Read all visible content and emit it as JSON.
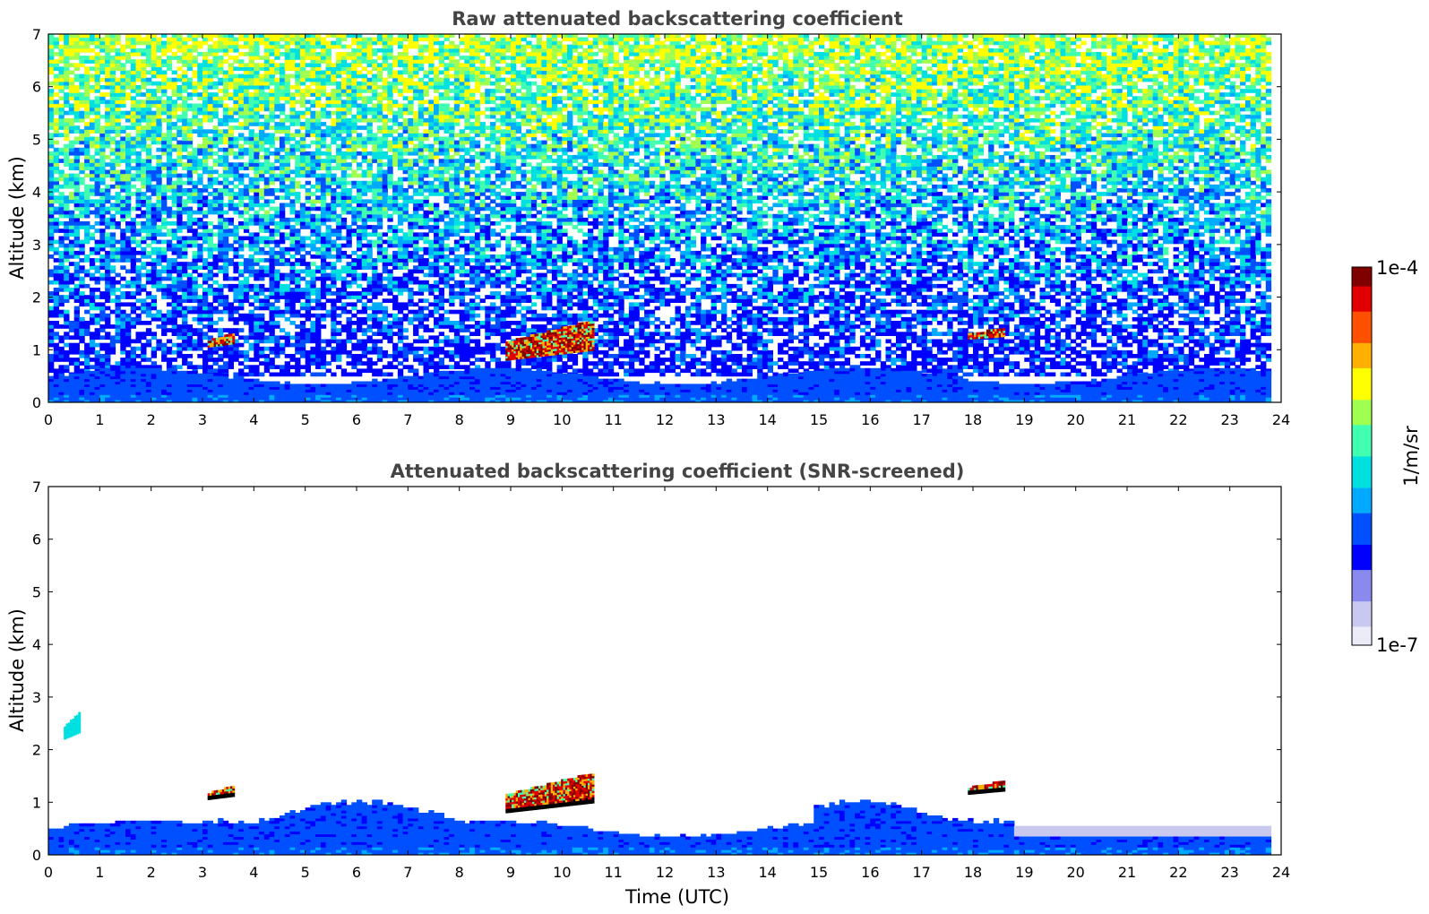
{
  "chart_data": [
    {
      "type": "heatmap",
      "title": "Raw attenuated backscattering coefficient",
      "xlabel": "",
      "ylabel": "Altitude (km)",
      "xlim": [
        0,
        24
      ],
      "ylim": [
        0,
        7
      ],
      "x_ticks": [
        "0",
        "1",
        "2",
        "3",
        "4",
        "5",
        "6",
        "7",
        "8",
        "9",
        "10",
        "11",
        "12",
        "13",
        "14",
        "15",
        "16",
        "17",
        "18",
        "19",
        "20",
        "21",
        "22",
        "23",
        "24"
      ],
      "y_ticks": [
        "0",
        "1",
        "2",
        "3",
        "4",
        "5",
        "6",
        "7"
      ],
      "data_end_time": 23.8,
      "background": "noisy, increasing with altitude",
      "features": [
        {
          "name": "boundary layer",
          "t_start": 0,
          "t_end": 23.8,
          "alt_top": 0.5
        },
        {
          "name": "cloud",
          "t_start": 3.1,
          "t_end": 3.6,
          "alt_bottom": 1.05,
          "alt_top": 1.3
        },
        {
          "name": "cloud",
          "t_start": 8.9,
          "t_end": 10.6,
          "alt_bottom": 0.8,
          "alt_top": 1.55
        },
        {
          "name": "cloud",
          "t_start": 17.9,
          "t_end": 18.6,
          "alt_bottom": 1.2,
          "alt_top": 1.4
        }
      ]
    },
    {
      "type": "heatmap",
      "title": "Attenuated backscattering coefficient (SNR-screened)",
      "xlabel": "Time (UTC)",
      "ylabel": "Altitude (km)",
      "xlim": [
        0,
        24
      ],
      "ylim": [
        0,
        7
      ],
      "x_ticks": [
        "0",
        "1",
        "2",
        "3",
        "4",
        "5",
        "6",
        "7",
        "8",
        "9",
        "10",
        "11",
        "12",
        "13",
        "14",
        "15",
        "16",
        "17",
        "18",
        "19",
        "20",
        "21",
        "22",
        "23",
        "24"
      ],
      "y_ticks": [
        "0",
        "1",
        "2",
        "3",
        "4",
        "5",
        "6",
        "7"
      ],
      "data_end_time": 23.8,
      "features": [
        {
          "name": "aerosol layer",
          "t_start": 0.3,
          "t_end": 0.6,
          "alt_bottom": 2.2,
          "alt_top": 2.7
        },
        {
          "name": "cloud",
          "t_start": 3.1,
          "t_end": 3.6,
          "alt_bottom": 1.05,
          "alt_top": 1.3
        },
        {
          "name": "cloud",
          "t_start": 8.9,
          "t_end": 10.6,
          "alt_bottom": 0.8,
          "alt_top": 1.55
        },
        {
          "name": "cloud",
          "t_start": 17.9,
          "t_end": 18.6,
          "alt_bottom": 1.15,
          "alt_top": 1.4
        }
      ]
    }
  ],
  "colorbar": {
    "max_label": "1e-4",
    "min_label": "1e-7",
    "label": "1/m/sr",
    "colormap": "jet-like",
    "stops": [
      "#ececf8",
      "#c9c9f0",
      "#8a8aee",
      "#0000ff",
      "#0050ff",
      "#00aaff",
      "#00e0e0",
      "#40ffb0",
      "#a0ff50",
      "#ffff00",
      "#ffb000",
      "#ff5000",
      "#e00000",
      "#800000"
    ]
  }
}
